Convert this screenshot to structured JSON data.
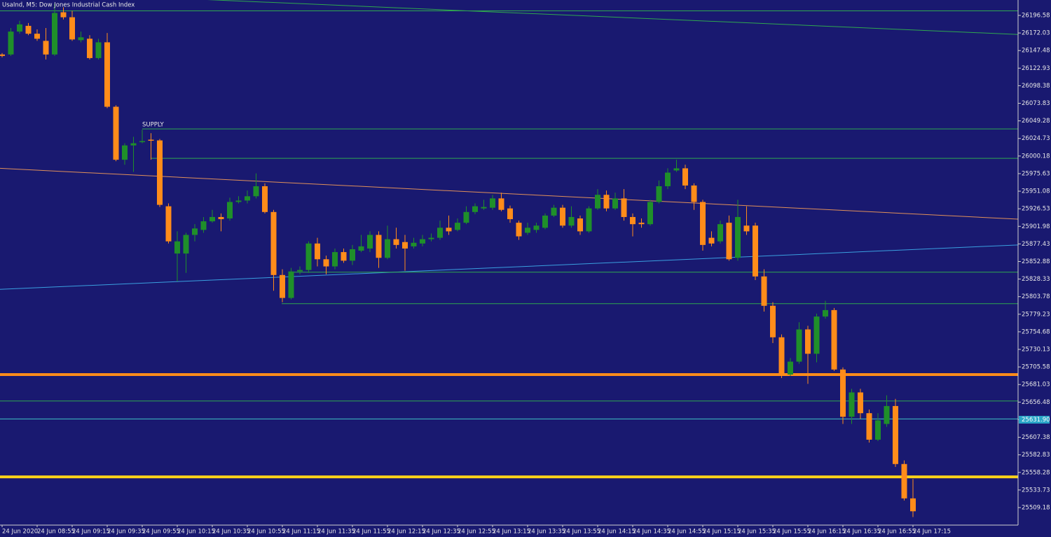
{
  "chart_data": {
    "type": "candlestick",
    "title": "UsaInd, M5: Dow Jones Industrial Cash Index",
    "categories": [
      "24 Jun 2020",
      null,
      null,
      null,
      "24 Jun 08:55",
      null,
      null,
      null,
      "24 Jun 09:15",
      null,
      null,
      null,
      "24 Jun 09:35",
      null,
      null,
      null,
      "24 Jun 09:55",
      null,
      null,
      null,
      "24 Jun 10:15",
      null,
      null,
      null,
      "24 Jun 10:35",
      null,
      null,
      null,
      "24 Jun 10:55",
      null,
      null,
      null,
      "24 Jun 11:15",
      null,
      null,
      null,
      "24 Jun 11:35",
      null,
      null,
      null,
      "24 Jun 11:55",
      null,
      null,
      null,
      "24 Jun 12:15",
      null,
      null,
      null,
      "24 Jun 12:35",
      null,
      null,
      null,
      "24 Jun 12:55",
      null,
      null,
      null,
      "24 Jun 13:15",
      null,
      null,
      null,
      "24 Jun 13:35",
      null,
      null,
      null,
      "24 Jun 13:55",
      null,
      null,
      null,
      "24 Jun 14:15",
      null,
      null,
      null,
      "24 Jun 14:35",
      null,
      null,
      null,
      "24 Jun 14:55",
      null,
      null,
      null,
      "24 Jun 15:15",
      null,
      null,
      null,
      "24 Jun 15:35",
      null,
      null,
      null,
      "24 Jun 15:55",
      null,
      null,
      null,
      "24 Jun 16:15",
      null,
      null,
      null,
      "24 Jun 16:35",
      null,
      null,
      null,
      "24 Jun 16:55",
      null,
      null,
      null,
      "24 Jun 17:15"
    ],
    "open": [
      26142,
      26142,
      26174,
      26182,
      26171,
      26161,
      26142,
      26201,
      26194,
      26162,
      26164,
      26137,
      26159,
      26069,
      25995,
      26015,
      26020,
      26023,
      26022,
      25930,
      25864,
      25864,
      25890,
      25897,
      25909,
      25915,
      25913,
      25936,
      25938,
      25944,
      25958,
      25922,
      25834,
      25802,
      25839,
      25841,
      25878,
      25856,
      25846,
      25866,
      25854,
      25868,
      25871,
      25890,
      25858,
      25884,
      25880,
      25874,
      25878,
      25884,
      25886,
      25900,
      25897,
      25907,
      25922,
      25927,
      25928,
      25941,
      25927,
      25907,
      25893,
      25897,
      25900,
      25917,
      25928,
      25903,
      25913,
      25895,
      25927,
      25946,
      25927,
      25941,
      25915,
      25907,
      25905,
      25936,
      25958,
      25980,
      25983,
      25959,
      25936,
      25886,
      25881,
      25907,
      25858,
      25903,
      25903,
      25832,
      25791,
      25747,
      25695,
      25713,
      25758,
      25724,
      25776,
      25785,
      25702,
      25636,
      25670,
      25641,
      25604,
      25626,
      25651,
      25570,
      25522
    ],
    "high": [
      26144,
      26179,
      26189,
      26186,
      26177,
      26179,
      26213,
      26208,
      26203,
      26174,
      26169,
      26164,
      26172,
      26071,
      26018,
      26027,
      26037,
      26032,
      26024,
      25934,
      25895,
      25893,
      25905,
      25915,
      25925,
      25920,
      25942,
      25944,
      25952,
      25976,
      25962,
      25925,
      25842,
      25844,
      25846,
      25881,
      25886,
      25861,
      25871,
      25871,
      25876,
      25890,
      25895,
      25895,
      25903,
      25900,
      25890,
      25886,
      25890,
      25892,
      25910,
      25917,
      25913,
      25930,
      25934,
      25939,
      25946,
      25949,
      25931,
      25910,
      25907,
      25907,
      25920,
      25932,
      25932,
      25930,
      25917,
      25930,
      25954,
      25952,
      25949,
      25954,
      25920,
      25913,
      25939,
      25966,
      25983,
      25995,
      25988,
      25962,
      25939,
      25895,
      25910,
      25917,
      25939,
      25930,
      25907,
      25842,
      25796,
      25751,
      25718,
      25768,
      25763,
      25780,
      25798,
      25788,
      25705,
      25675,
      25675,
      25646,
      25641,
      25666,
      25661,
      25575,
      25549
    ],
    "low": [
      26138,
      26140,
      26171,
      26169,
      26161,
      26135,
      26140,
      26191,
      26161,
      26159,
      26135,
      26135,
      26067,
      25993,
      25988,
      25978,
      26018,
      25995,
      25929,
      25878,
      25825,
      25837,
      25881,
      25893,
      25907,
      25895,
      25910,
      25934,
      25934,
      25941,
      25920,
      25812,
      25796,
      25800,
      25835,
      25837,
      25846,
      25835,
      25842,
      25851,
      25848,
      25866,
      25866,
      25844,
      25856,
      25871,
      25840,
      25871,
      25874,
      25881,
      25883,
      25890,
      25895,
      25905,
      25919,
      25925,
      25925,
      25923,
      25907,
      25883,
      25890,
      25893,
      25898,
      25915,
      25900,
      25900,
      25890,
      25893,
      25925,
      25923,
      25925,
      25910,
      25888,
      25900,
      25903,
      25934,
      25954,
      25978,
      25954,
      25925,
      25868,
      25874,
      25878,
      25854,
      25854,
      25890,
      25827,
      25783,
      25739,
      25690,
      25693,
      25710,
      25682,
      25712,
      25773,
      25700,
      25626,
      25626,
      25633,
      25600,
      25602,
      25622,
      25566,
      25519,
      25496
    ],
    "close": [
      26140,
      26174,
      26184,
      26171,
      26164,
      26142,
      26200,
      26194,
      26163,
      26166,
      26137,
      26159,
      26069,
      25995,
      26015,
      26018,
      26021,
      26022,
      25932,
      25881,
      25881,
      25890,
      25899,
      25909,
      25915,
      25912,
      25936,
      25938,
      25944,
      25958,
      25922,
      25834,
      25802,
      25839,
      25841,
      25878,
      25856,
      25846,
      25866,
      25854,
      25870,
      25874,
      25890,
      25858,
      25884,
      25876,
      25871,
      25879,
      25884,
      25886,
      25900,
      25895,
      25907,
      25922,
      25930,
      25929,
      25941,
      25925,
      25912,
      25888,
      25900,
      25903,
      25917,
      25928,
      25903,
      25915,
      25895,
      25927,
      25946,
      25927,
      25941,
      25915,
      25905,
      25905,
      25936,
      25958,
      25977,
      25983,
      25959,
      25936,
      25876,
      25878,
      25905,
      25856,
      25915,
      25895,
      25832,
      25791,
      25747,
      25695,
      25713,
      25758,
      25724,
      25776,
      25785,
      25702,
      25636,
      25670,
      25641,
      25604,
      25631,
      25651,
      25570,
      25522,
      25504
    ],
    "up_color": "#1f8f2a",
    "down_color": "#ff8c1a",
    "ylim": [
      25484.7,
      26218.1
    ],
    "yticks": [
      26196.58,
      26172.03,
      26147.48,
      26122.93,
      26098.38,
      26073.83,
      26049.28,
      26024.73,
      26000.18,
      25975.63,
      25951.08,
      25926.53,
      25901.98,
      25877.43,
      25852.88,
      25828.33,
      25803.78,
      25779.23,
      25754.68,
      25730.13,
      25705.58,
      25681.03,
      25656.48,
      25631.93,
      25607.38,
      25582.83,
      25558.28,
      25533.73,
      25509.18
    ],
    "current_price": {
      "value": 25631.9,
      "label": "25631.90"
    },
    "levels": [
      {
        "value": 26203,
        "color": "#2fa84f"
      },
      {
        "value": 26038,
        "color": "#2fa84f",
        "label": "SUPPLY"
      },
      {
        "value": 25997,
        "color": "#2fa84f"
      },
      {
        "value": 25838,
        "color": "#2fa84f"
      },
      {
        "value": 25794,
        "color": "#2fa84f"
      },
      {
        "value": 25658,
        "color": "#2fa84f"
      },
      {
        "value": 25633,
        "color": "#3fc4c4"
      },
      {
        "value": 25695,
        "color": "#ff8c1a"
      },
      {
        "value": 25552,
        "color": "#ffd21a"
      }
    ],
    "trendlines": [
      {
        "start": 26231,
        "end": 26170,
        "color": "#2fa84f"
      },
      {
        "start": 25983,
        "end": 25912,
        "color": "#e0905a"
      },
      {
        "start": 25814,
        "end": 25876,
        "color": "#3aa0e0"
      }
    ]
  }
}
